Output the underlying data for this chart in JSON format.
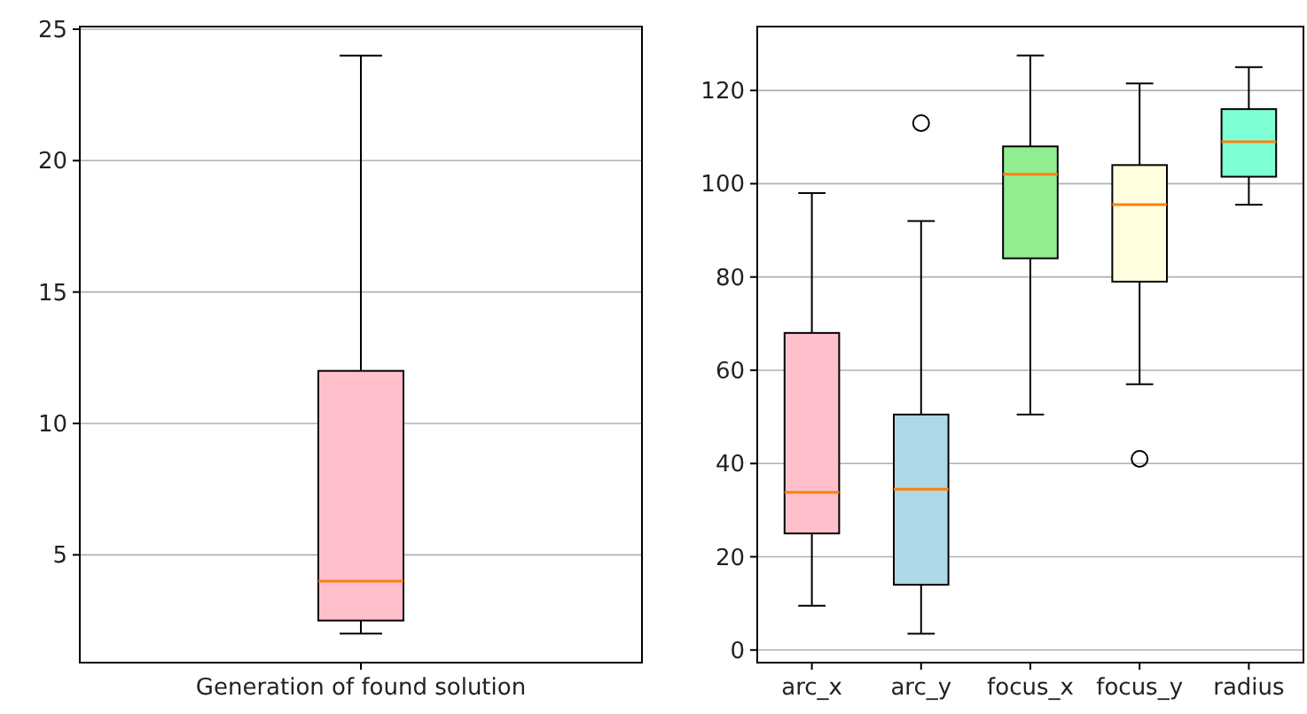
{
  "chart_data": [
    {
      "type": "box",
      "categories": [
        "Generation of found solution"
      ],
      "colors": [
        "#ffc0cb"
      ],
      "boxes": [
        {
          "low": 2,
          "q1": 2.5,
          "median": 4,
          "q3": 12,
          "high": 24
        }
      ],
      "ylim": [
        0.9,
        25.1
      ],
      "yticks": [
        5,
        10,
        15,
        20,
        25
      ],
      "grid": "y"
    },
    {
      "type": "box",
      "categories": [
        "arc_x",
        "arc_y",
        "focus_x",
        "focus_y",
        "radius"
      ],
      "colors": [
        "#ffc0cb",
        "#add8e6",
        "#90ee90",
        "#ffffe0",
        "#7fffd4"
      ],
      "boxes": [
        {
          "low": 9.5,
          "q1": 25,
          "median": 33.8,
          "q3": 68,
          "high": 98
        },
        {
          "low": 3.5,
          "q1": 14,
          "median": 34.5,
          "q3": 50.5,
          "high": 92,
          "outliers": [
            113
          ]
        },
        {
          "low": 50.5,
          "q1": 84,
          "median": 102,
          "q3": 108,
          "high": 127.5
        },
        {
          "low": 57,
          "q1": 79,
          "median": 95.5,
          "q3": 104,
          "high": 121.5,
          "outliers": [
            41
          ]
        },
        {
          "low": 95.5,
          "q1": 101.5,
          "median": 109,
          "q3": 116,
          "high": 125
        }
      ],
      "ylim": [
        -2.7,
        133.7
      ],
      "yticks": [
        0,
        20,
        40,
        60,
        80,
        100,
        120
      ],
      "grid": "y"
    }
  ]
}
